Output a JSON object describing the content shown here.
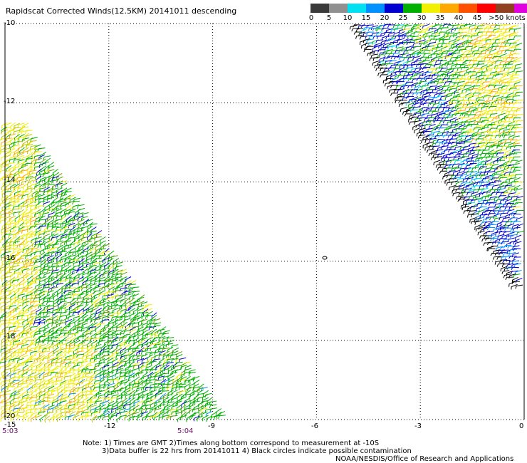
{
  "title": "Rapidscat Corrected Winds(12.5KM) 20141011 descending",
  "legend": {
    "colors": [
      "#3a3a3a",
      "#909090",
      "#00e0f0",
      "#0090ff",
      "#0000d0",
      "#00b000",
      "#f0f000",
      "#ffa800",
      "#ff5000",
      "#ff0000",
      "#904020",
      "#e000e0",
      "#5a0090"
    ],
    "labels": [
      "0",
      "5",
      "10",
      "15",
      "20",
      "25",
      "30",
      "35",
      "40",
      "45",
      ">50 knots"
    ]
  },
  "lat_labels": [
    "-10",
    "-12",
    "-14",
    "-16",
    "-18",
    "-20"
  ],
  "lon_labels": [
    "-15",
    "-12",
    "-9",
    "-6",
    "-3",
    "0"
  ],
  "time_labels": [
    "5:03",
    "5:04"
  ],
  "notes": {
    "line1": "Note: 1) Times are GMT 2)Times along bottom correspond to measurement at -10S",
    "line2": "3)Data buffer is 22 hrs from 20141011 4) Black circles indicate possible contamination",
    "credit": "NOAA/NESDIS/Office of Research and Applications"
  }
}
